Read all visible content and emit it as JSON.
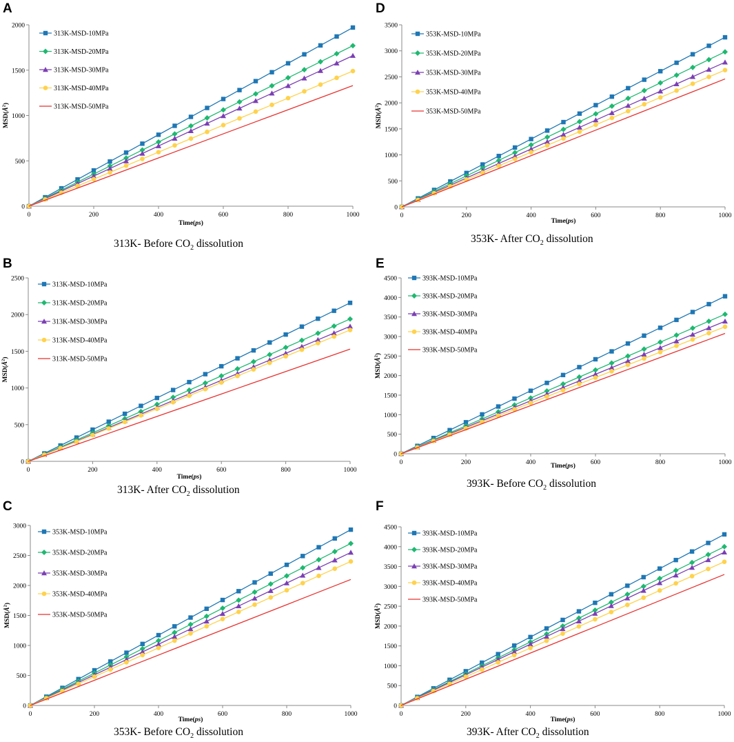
{
  "colors": {
    "10MPa": "#1f77b4",
    "20MPa": "#1fb871",
    "30MPa": "#7b3fb3",
    "40MPa": "#ffd24d",
    "50MPa": "#e8322f",
    "axis": "#888888"
  },
  "markers": [
    "square",
    "diamond",
    "triangle",
    "circle",
    "none"
  ],
  "chart_data": [
    {
      "id": "A",
      "type": "line",
      "letter": "A",
      "caption_pre": "313K- Before CO",
      "caption_sub": "2",
      "caption_post": " dissolution",
      "xlabel_pre": "Time(",
      "xlabel_it": "ps",
      "xlabel_post": ")",
      "ylabel_pre": "MSD(",
      "ylabel_it": "Å",
      "ylabel_sup": "2",
      "ylabel_post": ")",
      "xlim": [
        0,
        1000
      ],
      "ylim": [
        0,
        2000
      ],
      "xticks": [
        0,
        200,
        400,
        600,
        800,
        1000
      ],
      "yticks": [
        0,
        500,
        1000,
        1500,
        2000
      ],
      "series": [
        {
          "name": "313K-MSD-10MPa",
          "slope": 1.97
        },
        {
          "name": "313K-MSD-20MPa",
          "slope": 1.77
        },
        {
          "name": "313K-MSD-30MPa",
          "slope": 1.66
        },
        {
          "name": "313K-MSD-40MPa",
          "slope": 1.49
        },
        {
          "name": "313K-MSD-50MPa",
          "slope": 1.33
        }
      ]
    },
    {
      "id": "B",
      "type": "line",
      "letter": "B",
      "caption_pre": "313K- After CO",
      "caption_sub": "2",
      "caption_post": " dissolution",
      "xlabel_pre": "Time(",
      "xlabel_it": "ps",
      "xlabel_post": ")",
      "ylabel_pre": "MSD(",
      "ylabel_it": "Å",
      "ylabel_sup": "2",
      "ylabel_post": ")",
      "xlim": [
        0,
        1000
      ],
      "ylim": [
        0,
        2500
      ],
      "xticks": [
        0,
        200,
        400,
        600,
        800,
        1000
      ],
      "yticks": [
        0,
        500,
        1000,
        1500,
        2000,
        2500
      ],
      "series": [
        {
          "name": "313K-MSD-10MPa",
          "slope": 2.16
        },
        {
          "name": "313K-MSD-20MPa",
          "slope": 1.94
        },
        {
          "name": "313K-MSD-30MPa",
          "slope": 1.84
        },
        {
          "name": "313K-MSD-40MPa",
          "slope": 1.79
        },
        {
          "name": "313K-MSD-50MPa",
          "slope": 1.53
        }
      ]
    },
    {
      "id": "C",
      "type": "line",
      "letter": "C",
      "caption_pre": "353K- Before CO",
      "caption_sub": "2",
      "caption_post": " dissolution",
      "xlabel_pre": "Time(",
      "xlabel_it": "ps",
      "xlabel_post": ")",
      "ylabel_pre": "MSD(",
      "ylabel_it": "Å",
      "ylabel_sup": "2",
      "ylabel_post": ")",
      "xlim": [
        0,
        1000
      ],
      "ylim": [
        0,
        3000
      ],
      "xticks": [
        0,
        200,
        400,
        600,
        800,
        1000
      ],
      "yticks": [
        0,
        500,
        1000,
        1500,
        2000,
        2500,
        3000
      ],
      "series": [
        {
          "name": "353K-MSD-10MPa",
          "slope": 2.93
        },
        {
          "name": "353K-MSD-20MPa",
          "slope": 2.7
        },
        {
          "name": "353K-MSD-30MPa",
          "slope": 2.55
        },
        {
          "name": "353K-MSD-40MPa",
          "slope": 2.4
        },
        {
          "name": "353K-MSD-50MPa",
          "slope": 2.1
        }
      ]
    },
    {
      "id": "D",
      "type": "line",
      "letter": "D",
      "caption_pre": "353K- After CO",
      "caption_sub": "2",
      "caption_post": " dissolution",
      "xlabel_pre": "Time(",
      "xlabel_it": "ps",
      "xlabel_post": ")",
      "ylabel_pre": "MSD(",
      "ylabel_it": "Å",
      "ylabel_sup": "2",
      "ylabel_post": ")",
      "xlim": [
        0,
        1000
      ],
      "ylim": [
        0,
        3500
      ],
      "xticks": [
        0,
        200,
        400,
        600,
        800,
        1000
      ],
      "yticks": [
        0,
        500,
        1000,
        1500,
        2000,
        2500,
        3000,
        3500
      ],
      "series": [
        {
          "name": "353K-MSD-10MPa",
          "slope": 3.26
        },
        {
          "name": "353K-MSD-20MPa",
          "slope": 2.98
        },
        {
          "name": "353K-MSD-30MPa",
          "slope": 2.78
        },
        {
          "name": "353K-MSD-40MPa",
          "slope": 2.63
        },
        {
          "name": "353K-MSD-50MPa",
          "slope": 2.46
        }
      ]
    },
    {
      "id": "E",
      "type": "line",
      "letter": "E",
      "caption_pre": "393K- Before CO",
      "caption_sub": "2",
      "caption_post": " dissolution",
      "xlabel_pre": "Time(",
      "xlabel_it": "ps",
      "xlabel_post": ")",
      "ylabel_pre": "MSD(",
      "ylabel_it": "Å",
      "ylabel_sup": "2",
      "ylabel_post": ")",
      "xlim": [
        0,
        1000
      ],
      "ylim": [
        0,
        4500
      ],
      "xticks": [
        0,
        200,
        400,
        600,
        800,
        1000
      ],
      "yticks": [
        0,
        500,
        1000,
        1500,
        2000,
        2500,
        3000,
        3500,
        4000,
        4500
      ],
      "series": [
        {
          "name": "393K-MSD-10MPa",
          "slope": 4.03
        },
        {
          "name": "393K-MSD-20MPa",
          "slope": 3.57
        },
        {
          "name": "393K-MSD-30MPa",
          "slope": 3.39
        },
        {
          "name": "393K-MSD-40MPa",
          "slope": 3.25
        },
        {
          "name": "393K-MSD-50MPa",
          "slope": 3.08
        }
      ]
    },
    {
      "id": "F",
      "type": "line",
      "letter": "F",
      "caption_pre": "393K- After CO",
      "caption_sub": "2",
      "caption_post": " dissolution",
      "xlabel_pre": "Time(",
      "xlabel_it": "ps",
      "xlabel_post": ")",
      "ylabel_pre": "MSD(",
      "ylabel_it": "Å",
      "ylabel_sup": "2",
      "ylabel_post": ")",
      "xlim": [
        0,
        1000
      ],
      "ylim": [
        0,
        4500
      ],
      "xticks": [
        0,
        200,
        400,
        600,
        800,
        1000
      ],
      "yticks": [
        0,
        500,
        1000,
        1500,
        2000,
        2500,
        3000,
        3500,
        4000,
        4500
      ],
      "series": [
        {
          "name": "393K-MSD-10MPa",
          "slope": 4.31
        },
        {
          "name": "393K-MSD-20MPa",
          "slope": 4.0
        },
        {
          "name": "393K-MSD-30MPa",
          "slope": 3.86
        },
        {
          "name": "393K-MSD-40MPa",
          "slope": 3.62
        },
        {
          "name": "393K-MSD-50MPa",
          "slope": 3.3
        }
      ]
    }
  ]
}
